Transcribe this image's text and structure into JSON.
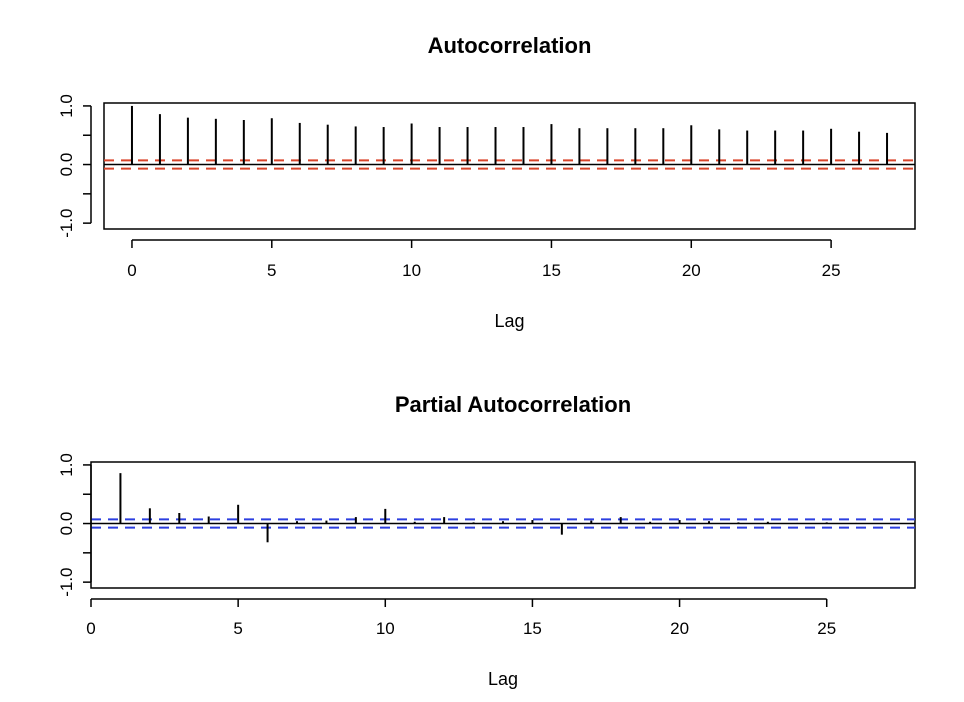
{
  "chart_data": [
    {
      "type": "bar",
      "title": "Autocorrelation",
      "xlabel": "Lag",
      "ylabel": "",
      "xlim": [
        -1,
        28
      ],
      "ylim": [
        -1.1,
        1.05
      ],
      "x_ticks": [
        "0",
        "5",
        "10",
        "15",
        "20",
        "25"
      ],
      "y_ticks": [
        "-1.0",
        "0.0",
        "1.0"
      ],
      "x": [
        0,
        1,
        2,
        3,
        4,
        5,
        6,
        7,
        8,
        9,
        10,
        11,
        12,
        13,
        14,
        15,
        16,
        17,
        18,
        19,
        20,
        21,
        22,
        23,
        24,
        25,
        26,
        27
      ],
      "values": [
        1.0,
        0.86,
        0.8,
        0.78,
        0.76,
        0.79,
        0.71,
        0.68,
        0.65,
        0.64,
        0.7,
        0.64,
        0.64,
        0.64,
        0.64,
        0.69,
        0.62,
        0.62,
        0.62,
        0.62,
        0.67,
        0.6,
        0.58,
        0.58,
        0.58,
        0.61,
        0.56,
        0.54
      ],
      "confidence_bound": 0.07,
      "bound_color": "#d9452b",
      "bar_color": "#000000",
      "zero_line": true,
      "grid": false
    },
    {
      "type": "bar",
      "title": "Partial Autocorrelation",
      "xlabel": "Lag",
      "ylabel": "",
      "xlim": [
        0,
        28
      ],
      "ylim": [
        -1.1,
        1.05
      ],
      "x_ticks": [
        "0",
        "5",
        "10",
        "15",
        "20",
        "25"
      ],
      "y_ticks": [
        "-1.0",
        "0.0",
        "1.0"
      ],
      "x": [
        1,
        2,
        3,
        4,
        5,
        6,
        7,
        8,
        9,
        10,
        11,
        12,
        13,
        14,
        15,
        16,
        17,
        18,
        19,
        20,
        21,
        22,
        23,
        24,
        25,
        26,
        27
      ],
      "values": [
        0.86,
        0.26,
        0.18,
        0.12,
        0.32,
        -0.32,
        0.04,
        0.05,
        0.11,
        0.25,
        0.03,
        0.11,
        0.02,
        0.04,
        0.06,
        -0.19,
        0.05,
        0.11,
        0.03,
        0.06,
        0.04,
        0.02,
        0.03,
        0.01,
        0.02,
        0.01,
        0.0
      ],
      "confidence_bound": 0.07,
      "bound_color": "#2c3fe0",
      "bar_color": "#000000",
      "zero_line": true,
      "grid": false
    }
  ]
}
